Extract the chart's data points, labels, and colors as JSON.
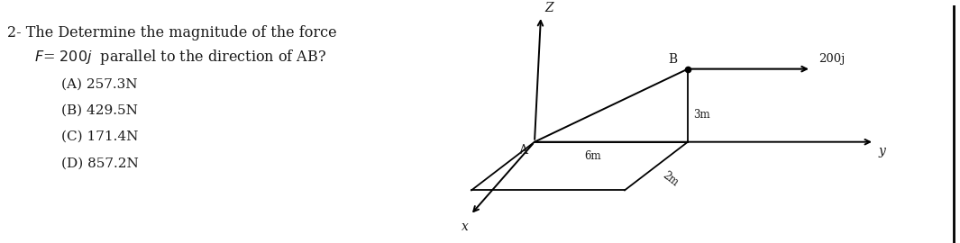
{
  "bg_color": "#ffffff",
  "question_line1": "2- The Determine the magnitude of the force",
  "question_line2": "F= 200j  parallel to the direction of AB?",
  "option_A": "(A) 257.3N",
  "option_B": "(B) 429.5N",
  "option_C": "(C) 171.4N",
  "option_D": "(D) 857.2N",
  "font_size_q": 11.5,
  "font_size_opt": 11.0,
  "text_color": "#1a1a1a"
}
